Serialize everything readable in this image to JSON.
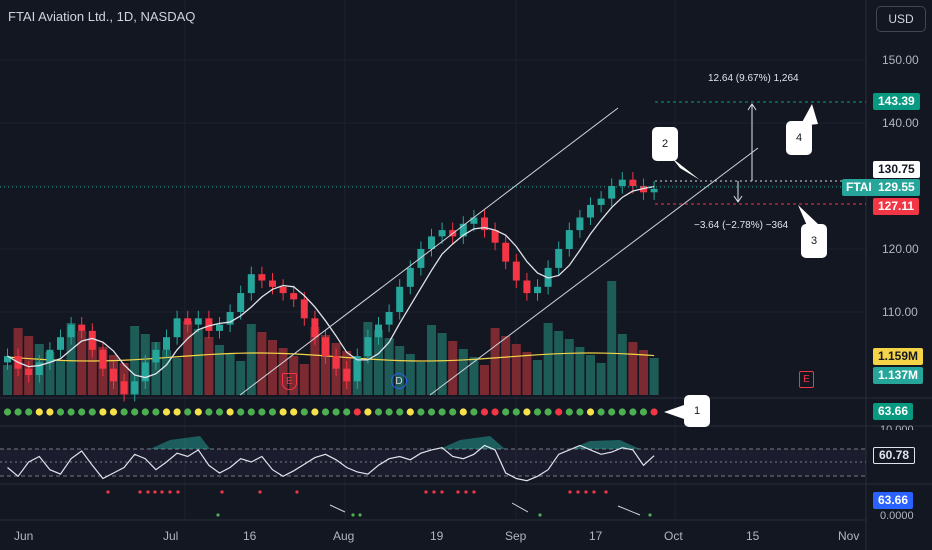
{
  "header": {
    "title": "FTAI Aviation Ltd., 1D, NASDAQ",
    "currency_button": "USD"
  },
  "price_axis": {
    "ticks": [
      "150.00",
      "140.00",
      "120.00",
      "110.00"
    ],
    "current_symbol": "FTAI",
    "current_price": "129.55",
    "level_high": "130.75",
    "target_up": "143.39",
    "target_down": "127.11",
    "volume_ma": "1.159M",
    "volume": "1.137M",
    "indicator1_value": "63.66",
    "rsi_clip": "10.000",
    "rsi_value": "60.78",
    "indicator3_value": "63.66",
    "indicator3_zero": "0.0000"
  },
  "time_axis": [
    "Jun",
    "Jul",
    "16",
    "Aug",
    "19",
    "Sep",
    "17",
    "Oct",
    "15",
    "Nov"
  ],
  "annotations": {
    "callout_1": "1",
    "callout_2": "2",
    "callout_3": "3",
    "callout_4": "4",
    "measure_up": "12.64 (9.67%) 1,264",
    "measure_down": "−3.64 (−2.78%) −364",
    "earnings_label": "E",
    "dividend_label": "D"
  },
  "colors": {
    "background": "#131722",
    "up": "#26a69a",
    "down": "#f23645",
    "volume_ma": "#f5d547",
    "target": "#089981"
  },
  "chart_data": {
    "type": "candlestick",
    "symbol": "FTAI",
    "closes": [
      103,
      101,
      100,
      102,
      104,
      106,
      108,
      107,
      104,
      101,
      99,
      97,
      99,
      102,
      104,
      106,
      109,
      108,
      109,
      107,
      108,
      110,
      113,
      116,
      115,
      114,
      113,
      112,
      109,
      106,
      103,
      101,
      99,
      103,
      106,
      108,
      110,
      114,
      117,
      120,
      122,
      123,
      122,
      124,
      125,
      123,
      121,
      118,
      115,
      113,
      114,
      117,
      120,
      123,
      125,
      127,
      128,
      130,
      131,
      130,
      129,
      129.55
    ],
    "indicator_dots": [
      "g",
      "g",
      "g",
      "y",
      "y",
      "g",
      "g",
      "g",
      "g",
      "y",
      "y",
      "g",
      "g",
      "g",
      "g",
      "y",
      "y",
      "g",
      "y",
      "g",
      "g",
      "y",
      "g",
      "g",
      "g",
      "g",
      "y",
      "y",
      "g",
      "y",
      "g",
      "g",
      "g",
      "r",
      "y",
      "g",
      "g",
      "g",
      "y",
      "g",
      "g",
      "g",
      "g",
      "y",
      "g",
      "r",
      "r",
      "g",
      "g",
      "y",
      "g",
      "g",
      "r",
      "g",
      "g",
      "y",
      "g",
      "g",
      "g",
      "g",
      "g",
      "r"
    ],
    "rsi": [
      50,
      42,
      55,
      60,
      48,
      44,
      58,
      65,
      52,
      40,
      45,
      50,
      62,
      58,
      48,
      55,
      63,
      60,
      66,
      52,
      45,
      50,
      58,
      55,
      60,
      48,
      42,
      47,
      53,
      59,
      62,
      57,
      50,
      46,
      44,
      52,
      58,
      60,
      57,
      63,
      66,
      68,
      60,
      58,
      62,
      70,
      66,
      45,
      40,
      38,
      42,
      48,
      62,
      66,
      70,
      66,
      62,
      64,
      68,
      66,
      52,
      60.78
    ],
    "ylim": [
      105,
      155
    ]
  }
}
